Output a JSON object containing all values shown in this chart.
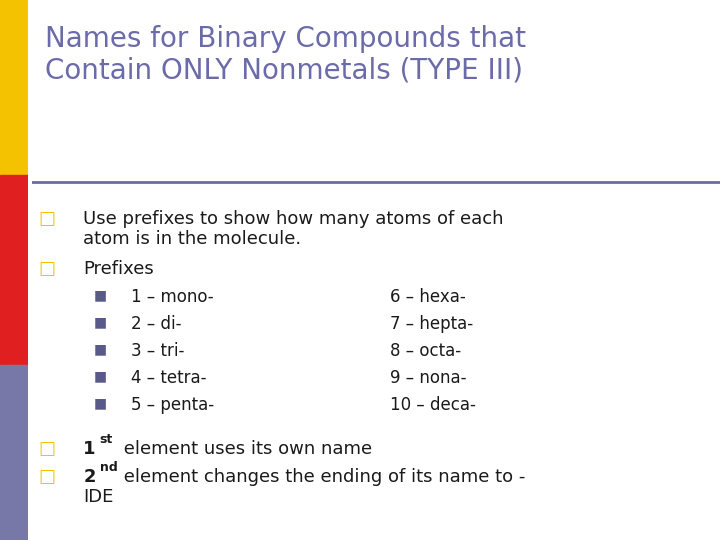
{
  "title_line1": "Names for Binary Compounds that",
  "title_line2": "Contain ONLY Nonmetals (TYPE III)",
  "title_color": "#6B6BAA",
  "background_color": "#FFFFFF",
  "bar_yellow": "#F5C200",
  "bar_red": "#E02020",
  "bar_purple": "#7878A8",
  "bullet_sq_color": "#F5C200",
  "sub_bullet_color": "#5A5A8A",
  "text_color": "#1A1A1A",
  "prefixes_left": [
    "1 – mono-",
    "2 – di-",
    "3 – tri-",
    "4 – tetra-",
    "5 – penta-"
  ],
  "prefixes_right": [
    "6 – hexa-",
    "7 – hepta-",
    "8 – octa-",
    "9 – nona-",
    "10 – deca-"
  ],
  "title_fontsize": 20,
  "body_fontsize": 13,
  "sub_fontsize": 12,
  "sup_fontsize": 9
}
